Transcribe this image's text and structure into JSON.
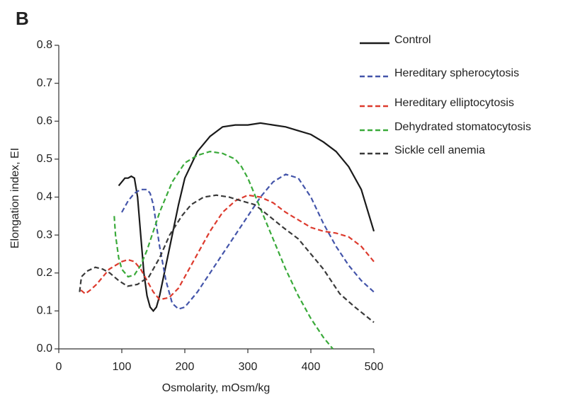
{
  "chart_data": {
    "type": "line",
    "panel_label": "B",
    "xlabel": "Osmolarity, mOsm/kg",
    "ylabel": "Elongation index, EI",
    "xlim": [
      0,
      500
    ],
    "xticks": [
      0,
      100,
      200,
      300,
      400,
      500
    ],
    "ylim": [
      0,
      0.8
    ],
    "yticks": [
      {
        "value": 0,
        "label": "0.0"
      },
      0.1,
      0.2,
      0.3,
      0.4,
      0.5,
      0.6,
      0.7,
      0.8
    ],
    "grid": false,
    "legend": "upper right",
    "series": [
      {
        "name": "Control",
        "color": "#1a1a1a",
        "linestyle": "solid",
        "x": [
          95,
          100,
          105,
          110,
          115,
          120,
          125,
          130,
          135,
          140,
          145,
          150,
          155,
          160,
          170,
          180,
          190,
          200,
          220,
          240,
          260,
          280,
          300,
          320,
          340,
          360,
          380,
          400,
          420,
          440,
          460,
          480,
          500
        ],
        "values": [
          0.43,
          0.44,
          0.45,
          0.45,
          0.455,
          0.45,
          0.4,
          0.3,
          0.2,
          0.14,
          0.11,
          0.1,
          0.11,
          0.14,
          0.22,
          0.3,
          0.38,
          0.45,
          0.52,
          0.56,
          0.585,
          0.59,
          0.59,
          0.595,
          0.59,
          0.585,
          0.575,
          0.565,
          0.545,
          0.52,
          0.48,
          0.42,
          0.31
        ]
      },
      {
        "name": "Hereditary spherocytosis",
        "color": "#4455aa",
        "linestyle": "dashed",
        "x": [
          100,
          110,
          120,
          130,
          140,
          145,
          150,
          160,
          170,
          180,
          190,
          200,
          220,
          240,
          260,
          280,
          300,
          320,
          340,
          360,
          380,
          400,
          420,
          440,
          460,
          480,
          500
        ],
        "values": [
          0.36,
          0.39,
          0.41,
          0.42,
          0.42,
          0.41,
          0.38,
          0.27,
          0.18,
          0.12,
          0.105,
          0.11,
          0.15,
          0.2,
          0.25,
          0.3,
          0.35,
          0.4,
          0.44,
          0.46,
          0.45,
          0.4,
          0.33,
          0.27,
          0.22,
          0.18,
          0.15
        ]
      },
      {
        "name": "Hereditary elliptocytosis",
        "color": "#dd3b2e",
        "linestyle": "dashed",
        "x": [
          35,
          42,
          50,
          60,
          70,
          80,
          90,
          100,
          110,
          120,
          130,
          140,
          150,
          160,
          175,
          190,
          200,
          220,
          240,
          260,
          280,
          300,
          320,
          340,
          360,
          380,
          400,
          420,
          440,
          460,
          480,
          500
        ],
        "values": [
          0.155,
          0.145,
          0.155,
          0.17,
          0.19,
          0.21,
          0.22,
          0.23,
          0.235,
          0.23,
          0.21,
          0.18,
          0.15,
          0.13,
          0.135,
          0.16,
          0.19,
          0.25,
          0.31,
          0.36,
          0.39,
          0.405,
          0.4,
          0.385,
          0.36,
          0.34,
          0.32,
          0.31,
          0.305,
          0.295,
          0.27,
          0.23
        ]
      },
      {
        "name": "Dehydrated stomatocytosis",
        "color": "#3aaa3a",
        "linestyle": "dashed",
        "x": [
          88,
          90,
          95,
          100,
          110,
          120,
          130,
          140,
          150,
          160,
          170,
          180,
          200,
          220,
          240,
          260,
          280,
          290,
          300,
          310,
          320,
          340,
          360,
          380,
          400,
          420,
          435
        ],
        "values": [
          0.35,
          0.3,
          0.24,
          0.21,
          0.19,
          0.195,
          0.22,
          0.26,
          0.31,
          0.36,
          0.4,
          0.44,
          0.49,
          0.51,
          0.52,
          0.515,
          0.5,
          0.48,
          0.45,
          0.41,
          0.37,
          0.29,
          0.21,
          0.14,
          0.08,
          0.03,
          0.0
        ]
      },
      {
        "name": "Sickle cell anemia",
        "color": "#3a3a3a",
        "linestyle": "dashed",
        "x": [
          33,
          36,
          45,
          58,
          70,
          81,
          95,
          109,
          125,
          143,
          160,
          176,
          195,
          210,
          230,
          250,
          270,
          290,
          311,
          330,
          356,
          380,
          400,
          420,
          446,
          470,
          500
        ],
        "values": [
          0.15,
          0.19,
          0.205,
          0.215,
          0.21,
          0.2,
          0.18,
          0.165,
          0.17,
          0.19,
          0.24,
          0.3,
          0.35,
          0.38,
          0.4,
          0.405,
          0.4,
          0.39,
          0.38,
          0.355,
          0.32,
          0.29,
          0.25,
          0.21,
          0.145,
          0.11,
          0.07
        ]
      }
    ]
  }
}
